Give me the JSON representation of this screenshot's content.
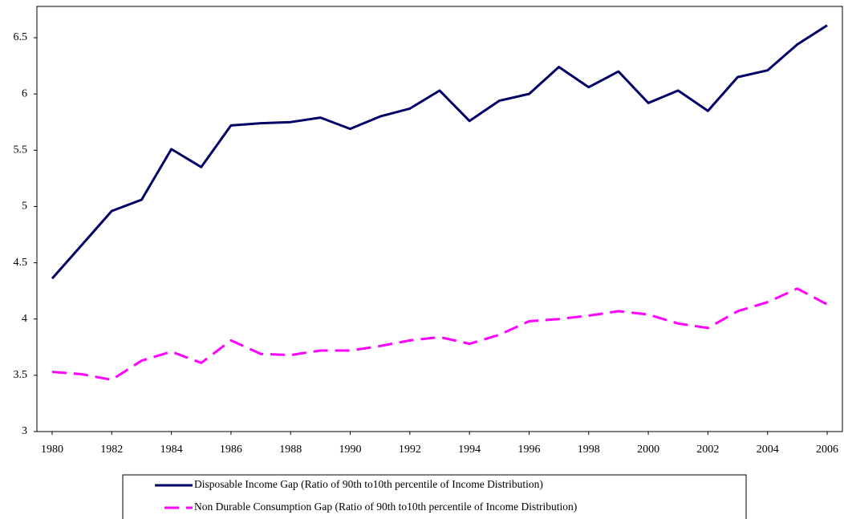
{
  "chart_data": {
    "type": "line",
    "x": [
      1980,
      1981,
      1982,
      1983,
      1984,
      1985,
      1986,
      1987,
      1988,
      1989,
      1990,
      1991,
      1992,
      1993,
      1994,
      1995,
      1996,
      1997,
      1998,
      1999,
      2000,
      2001,
      2002,
      2003,
      2004,
      2005,
      2006
    ],
    "series": [
      {
        "name": "Disposable Income Gap (Ratio of 90th to10th percentile of Income Distribution)",
        "color": "#000066",
        "dash": false,
        "values": [
          4.36,
          4.66,
          4.96,
          5.06,
          5.51,
          5.35,
          5.72,
          5.74,
          5.75,
          5.79,
          5.69,
          5.8,
          5.87,
          6.03,
          5.76,
          5.94,
          6.0,
          6.24,
          6.06,
          6.2,
          5.92,
          6.03,
          5.85,
          6.15,
          6.21,
          6.44,
          6.61
        ]
      },
      {
        "name": "Non Durable Consumption Gap (Ratio of 90th to10th percentile of Income Distribution)",
        "color": "#ff00ff",
        "dash": true,
        "values": [
          3.53,
          3.51,
          3.46,
          3.63,
          3.71,
          3.61,
          3.81,
          3.69,
          3.68,
          3.72,
          3.72,
          3.76,
          3.81,
          3.84,
          3.78,
          3.86,
          3.98,
          4.0,
          4.03,
          4.07,
          4.04,
          3.96,
          3.92,
          4.07,
          4.15,
          4.27,
          4.13
        ]
      }
    ],
    "xlim": [
      1980,
      2006
    ],
    "xticks": [
      1980,
      1982,
      1984,
      1986,
      1988,
      1990,
      1992,
      1994,
      1996,
      1998,
      2000,
      2002,
      2004,
      2006
    ],
    "ylim": [
      3,
      6.5
    ],
    "yticks": [
      3,
      3.5,
      4,
      4.5,
      5,
      5.5,
      6,
      6.5
    ],
    "grid": false,
    "legend": "bottom"
  }
}
